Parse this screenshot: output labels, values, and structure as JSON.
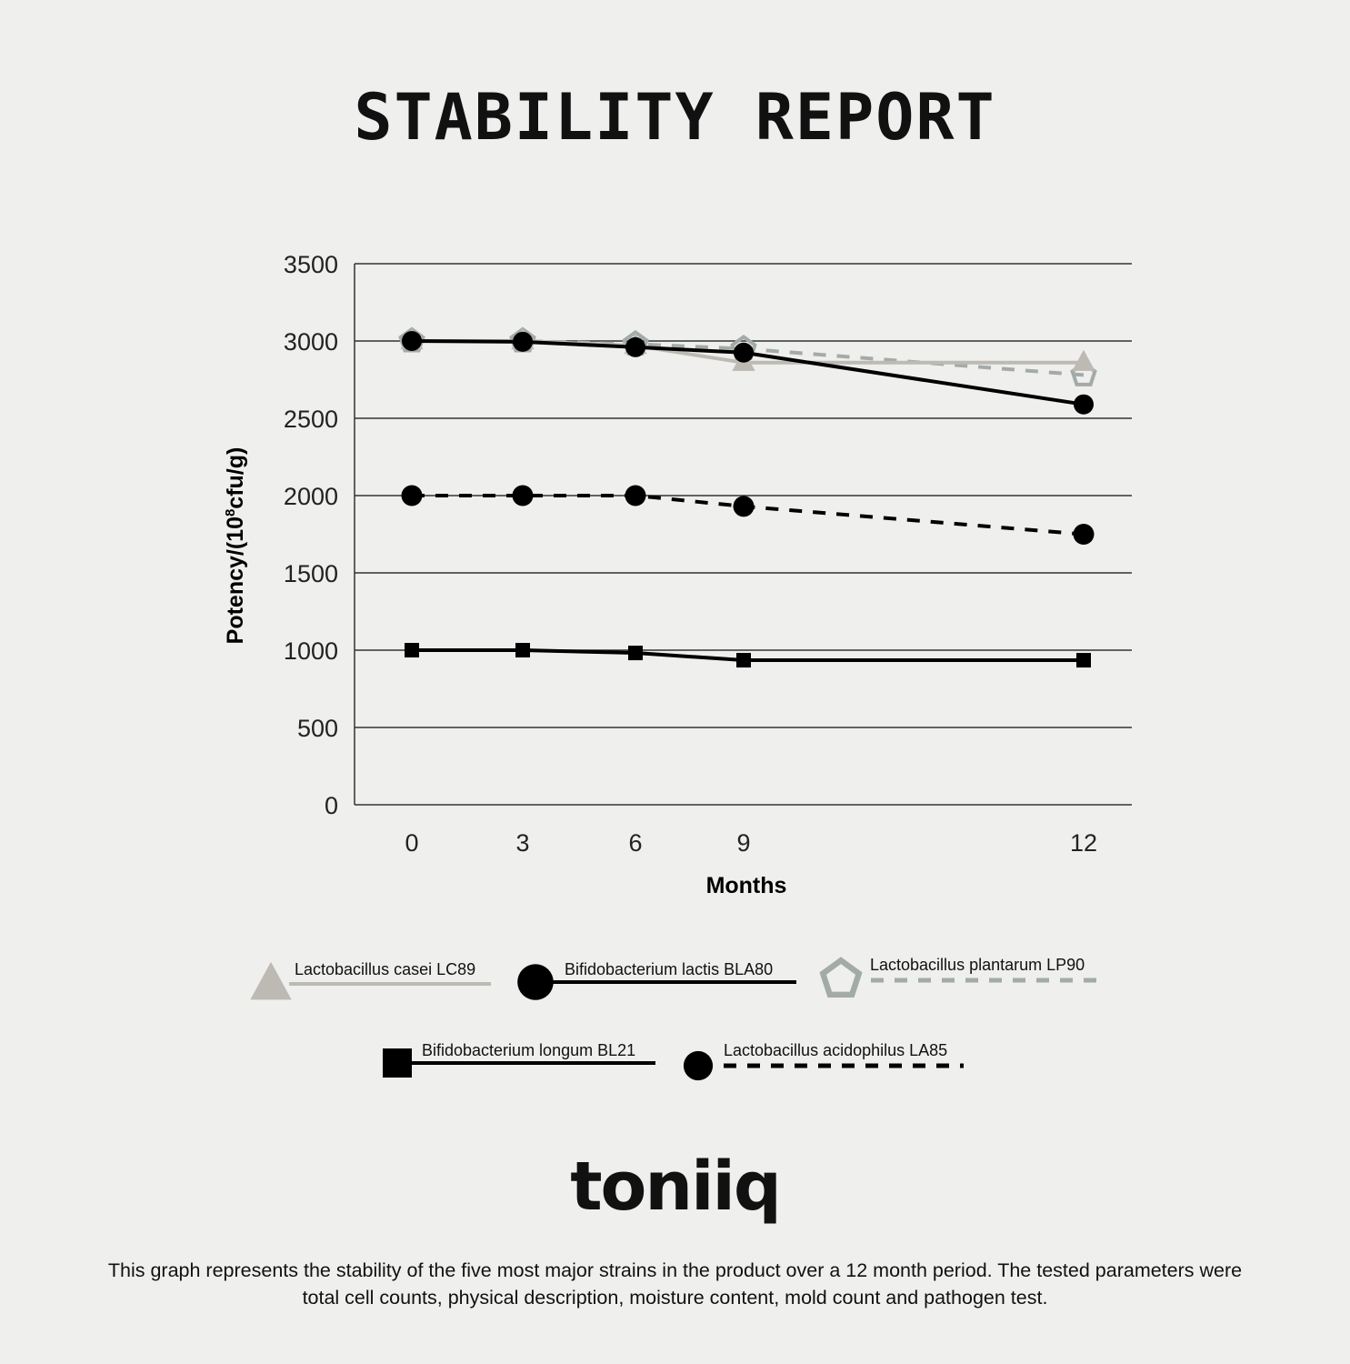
{
  "title": "STABILITY REPORT",
  "brand": "toniiq",
  "footnote": "This graph represents the stability of the five most major strains in the product over a 12 month period. The tested parameters were total cell counts, physical description, moisture content, mold count and pathogen test.",
  "chart_data": {
    "type": "line",
    "xlabel": "Months",
    "ylabel": "Potency/(10^8cfu/g)",
    "ylabel_parts": {
      "pre": "Potency/(10",
      "sup": "8",
      "post": "cfu/g)"
    },
    "x": [
      0,
      3,
      6,
      9,
      12
    ],
    "x_tick_labels": [
      "0",
      "3",
      "6",
      "9",
      "12"
    ],
    "ylim": [
      0,
      3500
    ],
    "y_ticks": [
      0,
      500,
      1000,
      1500,
      2000,
      2500,
      3000,
      3500
    ],
    "y_tick_labels": [
      "0",
      "500",
      "1000",
      "1500",
      "2000",
      "2500",
      "3000",
      "3500"
    ],
    "grid": "horizontal",
    "legend_placement": "bottom",
    "series": [
      {
        "name": "Lactobacillus casei LC89",
        "values": [
          3000,
          3000,
          2970,
          2860,
          2860
        ],
        "color": "#bdbab4",
        "marker": "triangle",
        "dash": "solid"
      },
      {
        "name": "Bifidobacterium lactis BLA80",
        "values": [
          3000,
          2995,
          2960,
          2925,
          2590
        ],
        "color": "#000000",
        "marker": "circle-large",
        "dash": "solid"
      },
      {
        "name": "Lactobacillus plantarum LP90",
        "values": [
          3000,
          3000,
          2980,
          2950,
          2780
        ],
        "color": "#a3aba8",
        "marker": "pentagon",
        "dash": "dashed"
      },
      {
        "name": "Bifidobacterium longum BL21",
        "values": [
          1000,
          1000,
          982,
          935,
          935
        ],
        "color": "#000000",
        "marker": "square",
        "dash": "solid"
      },
      {
        "name": "Lactobacillus acidophilus LA85",
        "values": [
          2000,
          2000,
          2000,
          1930,
          1750
        ],
        "color": "#000000",
        "marker": "circle",
        "dash": "dashed"
      }
    ]
  }
}
